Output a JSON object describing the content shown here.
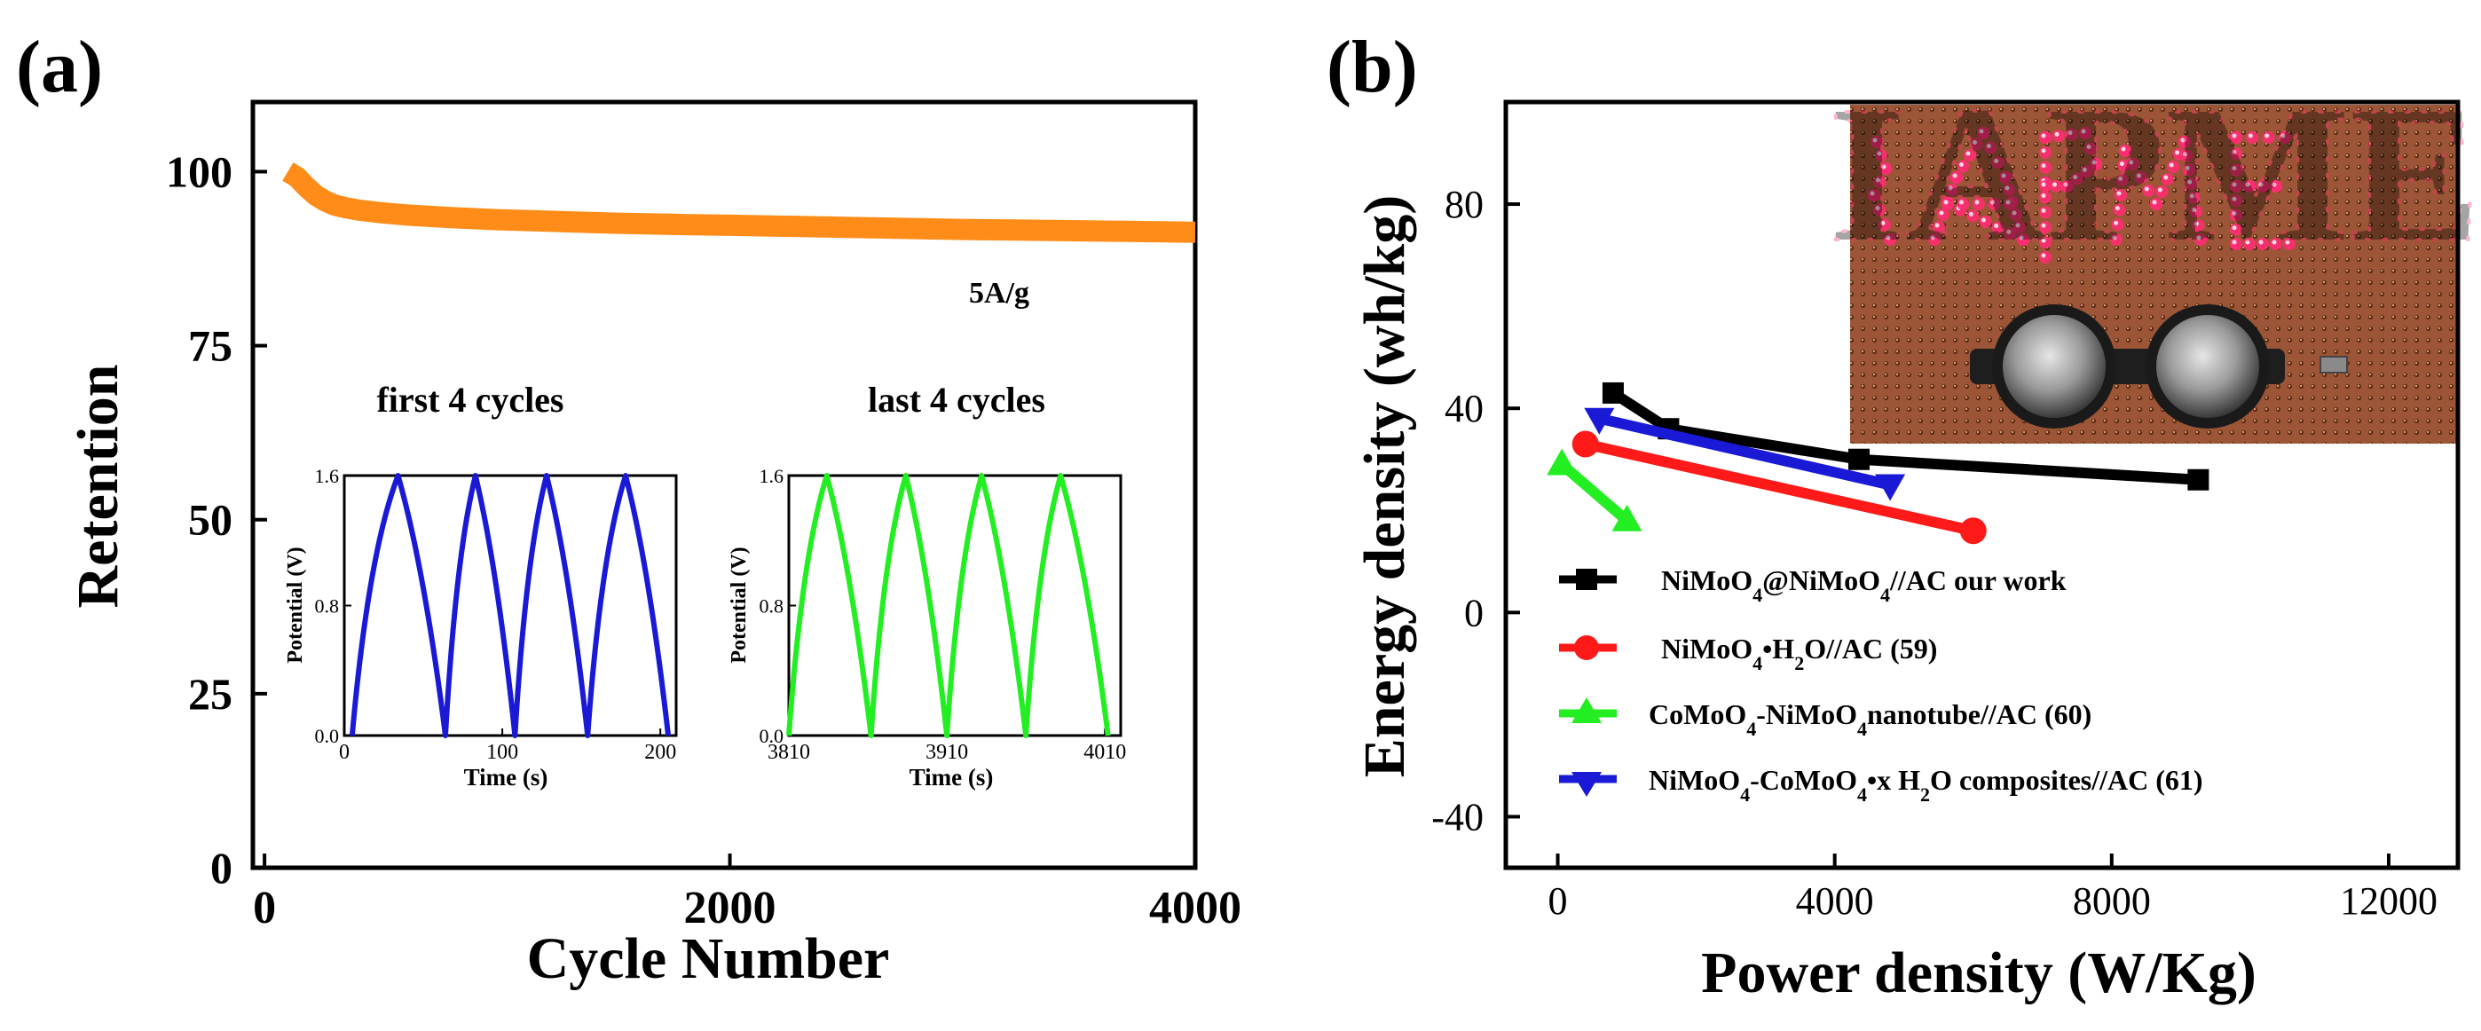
{
  "panels": {
    "a": {
      "label": "(a)"
    },
    "b": {
      "label": "(b)"
    }
  },
  "colors": {
    "retention": "#ff8c19",
    "first_cycles": "#1a1ad6",
    "last_cycles": "#22ee22",
    "ours": "#000000",
    "ref59": "#ff1a1a",
    "ref60": "#22ee22",
    "ref61": "#1a1ad6",
    "photo_board": "#9c5536",
    "photo_led": "#ff2e72"
  },
  "photo": {
    "caption": "IAPME",
    "icon": "coin-cell-photo"
  },
  "chart_data": [
    {
      "id": "retention",
      "type": "line",
      "title": "",
      "xlabel": "Cycle Number",
      "ylabel": "Retention",
      "xlim": [
        -50,
        4000
      ],
      "ylim": [
        0,
        110
      ],
      "xticks": [
        0,
        2000,
        4000
      ],
      "yticks": [
        0,
        25,
        50,
        75,
        100
      ],
      "grid": false,
      "annotation": "5A/g",
      "series": [
        {
          "name": "Retention",
          "color": "#ff8c19",
          "x": [
            100,
            140,
            180,
            220,
            260,
            300,
            350,
            400,
            500,
            600,
            800,
            1000,
            1200,
            1500,
            1800,
            2000,
            2500,
            3000,
            3500,
            4000
          ],
          "y": [
            100,
            99.2,
            97.8,
            96.6,
            95.8,
            95.2,
            94.8,
            94.5,
            94.1,
            93.8,
            93.4,
            93.1,
            92.9,
            92.6,
            92.4,
            92.3,
            92.0,
            91.7,
            91.5,
            91.3
          ]
        }
      ]
    },
    {
      "id": "inset-first",
      "type": "line",
      "title": "first 4 cycles",
      "xlabel": "Time (s)",
      "ylabel": "Potential (V)",
      "xlim": [
        0,
        210
      ],
      "ylim": [
        0,
        1.6
      ],
      "xticks": [
        0,
        100,
        200
      ],
      "xtick_labels": [
        "0",
        "100",
        "200"
      ],
      "yticks": [
        0,
        0.8,
        1.6
      ],
      "ytick_labels": [
        "0.0",
        "0.8",
        "1.6"
      ],
      "series": [
        {
          "name": "first 4 cycles",
          "color": "#1a1ad6",
          "x": [
            5,
            34,
            64,
            83,
            108,
            128,
            154,
            178,
            205
          ],
          "y": [
            0,
            1.6,
            0,
            1.6,
            0,
            1.6,
            0,
            1.6,
            0
          ]
        }
      ]
    },
    {
      "id": "inset-last",
      "type": "line",
      "title": "last 4 cycles",
      "xlabel": "Time (s)",
      "ylabel": "Potential (V)",
      "xlim": [
        3810,
        4020
      ],
      "ylim": [
        0,
        1.6
      ],
      "xticks": [
        3810,
        3910,
        4010
      ],
      "xtick_labels": [
        "3810",
        "3910",
        "4010"
      ],
      "yticks": [
        0,
        0.8,
        1.6
      ],
      "ytick_labels": [
        "0.0",
        "0.8",
        "1.6"
      ],
      "series": [
        {
          "name": "last 4 cycles",
          "color": "#22ee22",
          "x": [
            3810,
            3834,
            3862,
            3884,
            3910,
            3932,
            3960,
            3982,
            4012
          ],
          "y": [
            0,
            1.6,
            0,
            1.6,
            0,
            1.6,
            0,
            1.6,
            0
          ]
        }
      ]
    },
    {
      "id": "ragone",
      "type": "line",
      "title": "",
      "xlabel": "Power density (W/Kg)",
      "ylabel": "Energy density (wh/kg)",
      "xlim": [
        -750,
        13000
      ],
      "ylim": [
        -50,
        100
      ],
      "xticks": [
        0,
        4000,
        8000,
        12000
      ],
      "yticks": [
        -40,
        0,
        40,
        80
      ],
      "grid": false,
      "legend_position": "bottom-left",
      "series": [
        {
          "name": "NiMoO",
          "name_sub1": "4",
          "name_mid": "@NiMoO",
          "name_sub2": "4",
          "name_tail": "//AC  our work",
          "marker": "square",
          "color": "#000000",
          "x": [
            800,
            1600,
            4350,
            9250
          ],
          "y": [
            43,
            36,
            30,
            26
          ]
        },
        {
          "name": "NiMoO",
          "name_sub1": "4",
          "name_mid": "•H",
          "name_sub2": "2",
          "name_tail": "O//AC (59)",
          "marker": "circle",
          "color": "#ff1a1a",
          "x": [
            400,
            6000
          ],
          "y": [
            33,
            16
          ]
        },
        {
          "name": "CoMoO",
          "name_sub1": "4",
          "name_mid": "-NiMoO",
          "name_sub2": "4",
          "name_tail": "nanotube//AC (60)",
          "marker": "triangle-up",
          "color": "#22ee22",
          "x": [
            60,
            1000
          ],
          "y": [
            29,
            18
          ]
        },
        {
          "name": "NiMoO",
          "name_sub1": "4",
          "name_mid": "-CoMoO",
          "name_sub2": "4",
          "name_tail": "•x H",
          "name_sub3": "2",
          "name_tail2": "O composites//AC (61)",
          "marker": "triangle-down",
          "color": "#1a1ad6",
          "x": [
            600,
            4800
          ],
          "y": [
            38,
            25
          ]
        }
      ]
    }
  ]
}
